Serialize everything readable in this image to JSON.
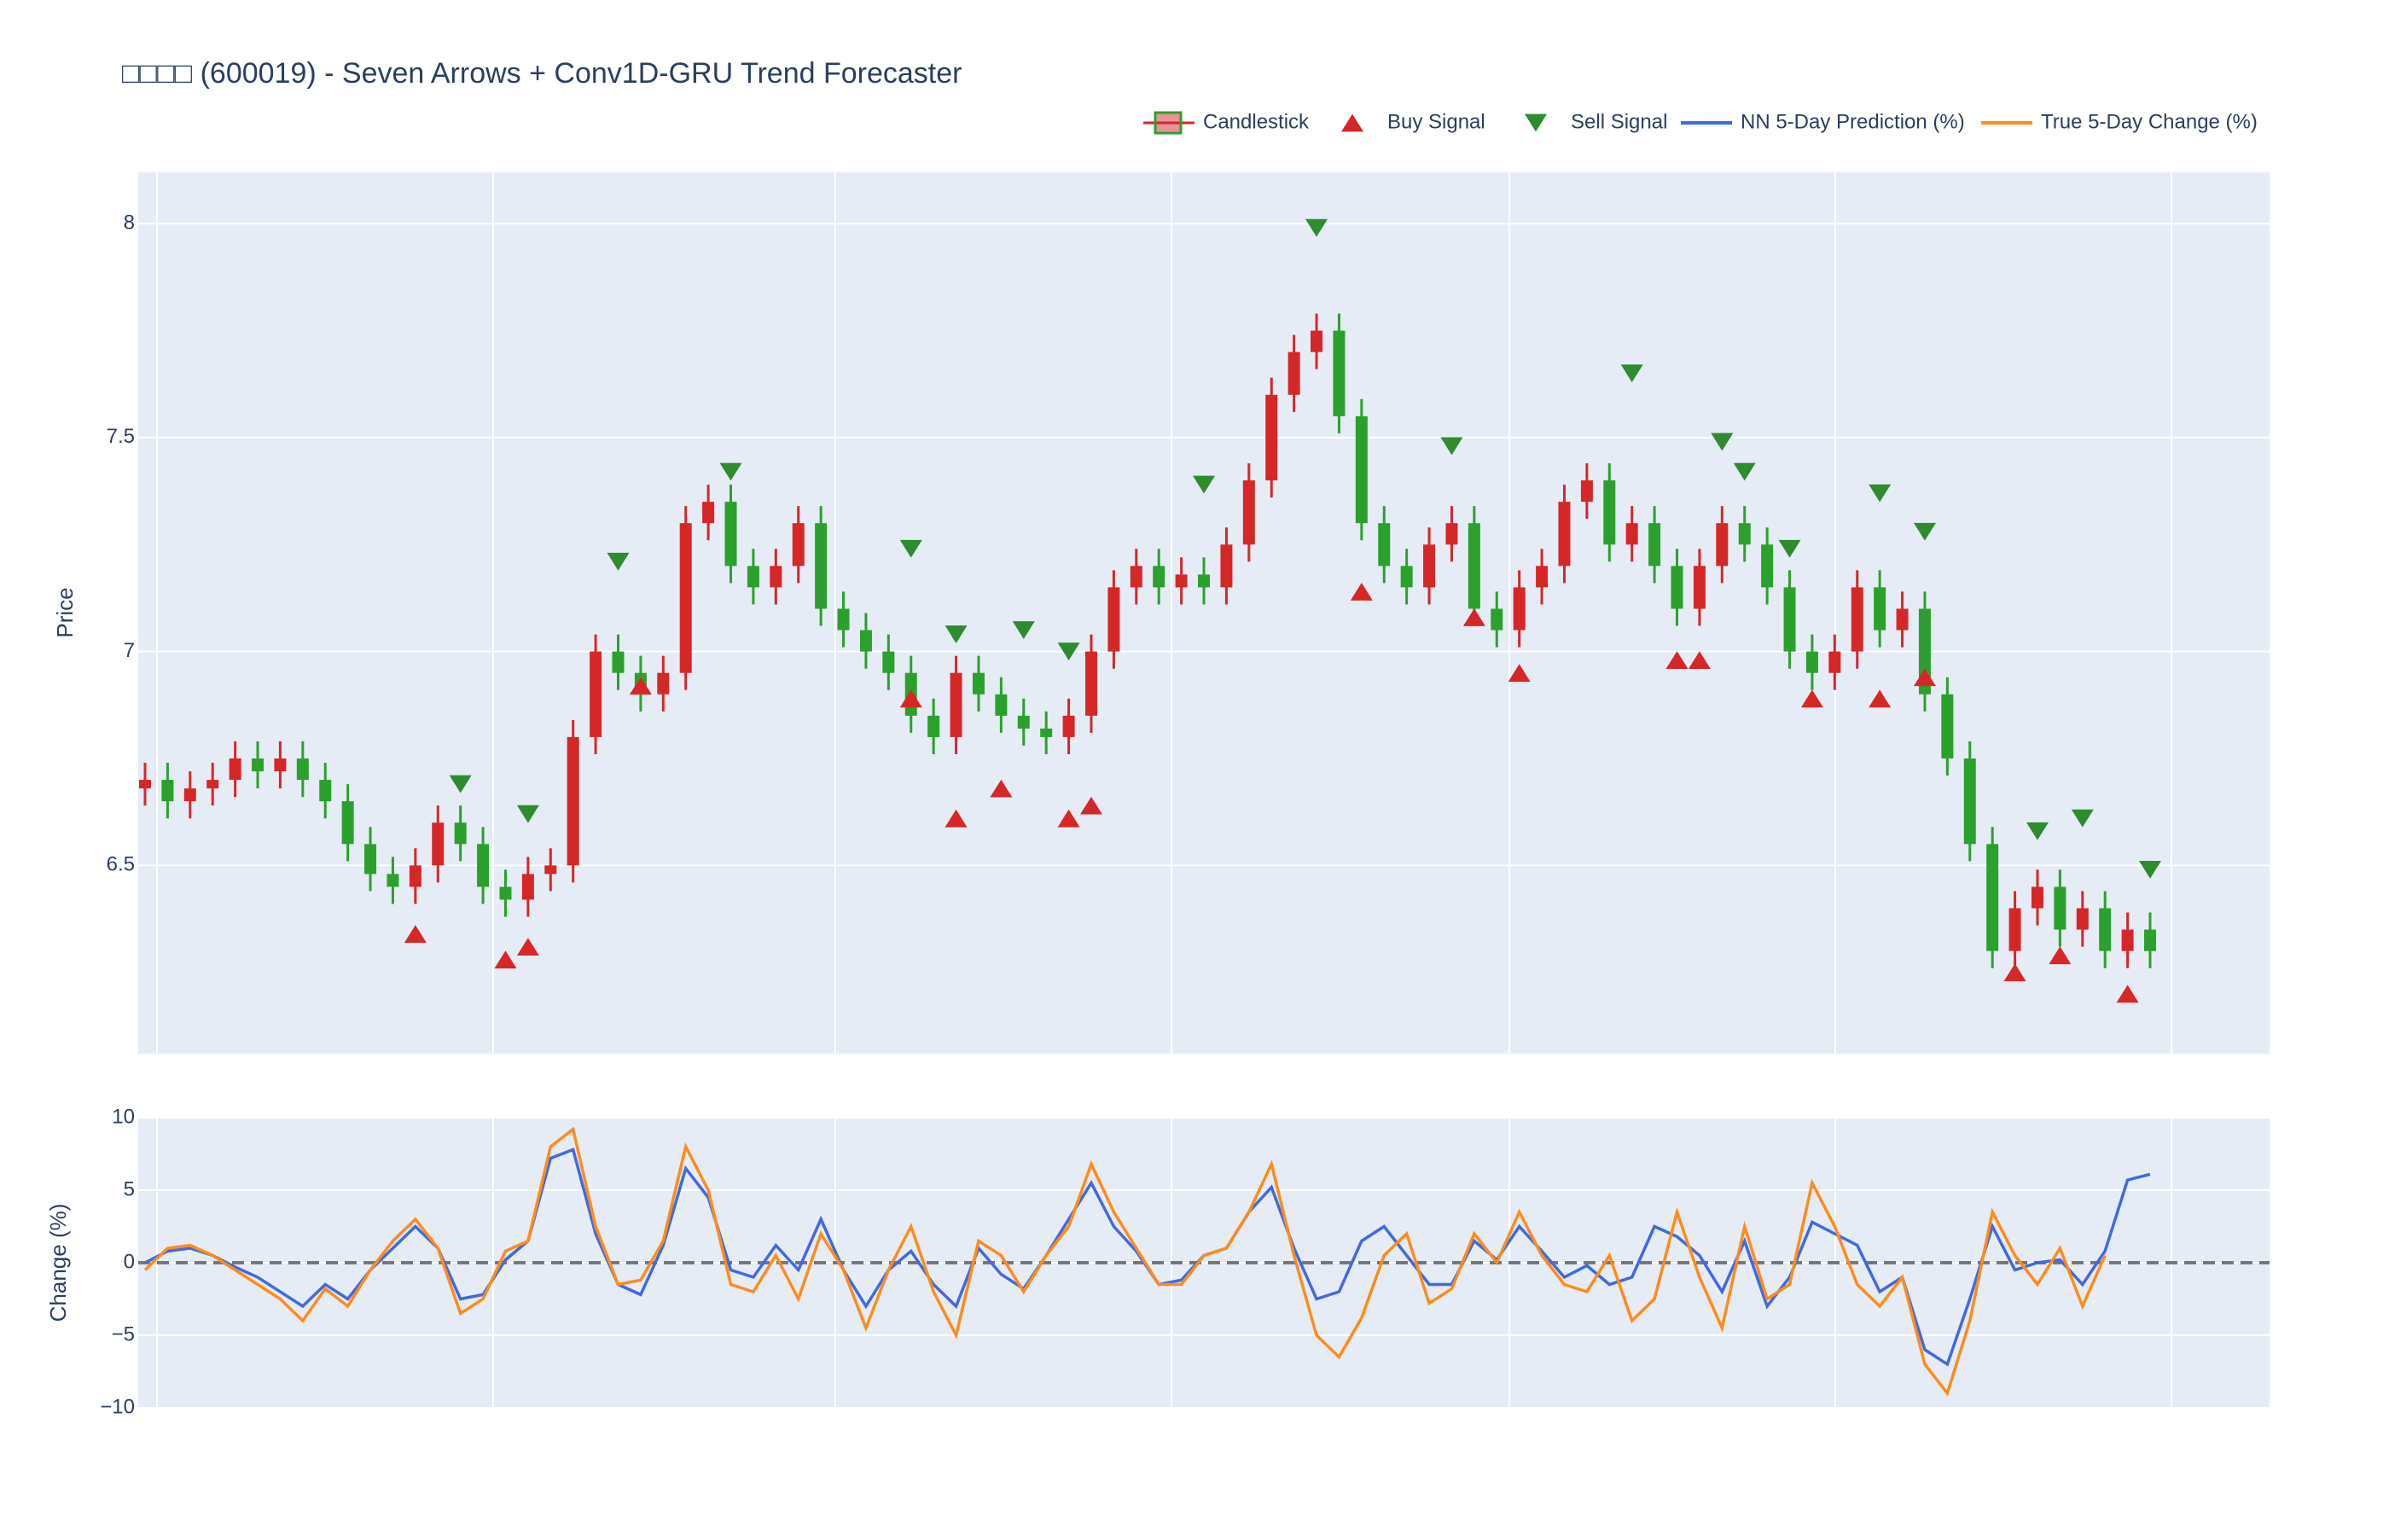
{
  "chart_data": [
    {
      "type": "candlestick",
      "title": "□□□□ (600019) - Seven Arrows + Conv1D-GRU Trend Forecaster",
      "y_label": "Price",
      "ylim": [
        6.06,
        8.12
      ],
      "yticks": [
        6.5,
        7,
        7.5,
        8
      ],
      "grid": true,
      "series": [
        {
          "name": "Candlestick",
          "type": "candlestick",
          "increasing_color": "#d62728",
          "decreasing_color": "#2ca02c",
          "open": [
            6.68,
            6.7,
            6.65,
            6.68,
            6.7,
            6.75,
            6.72,
            6.75,
            6.7,
            6.65,
            6.55,
            6.48,
            6.45,
            6.5,
            6.6,
            6.55,
            6.45,
            6.42,
            6.48,
            6.5,
            6.8,
            7.0,
            6.95,
            6.9,
            6.95,
            7.3,
            7.35,
            7.2,
            7.15,
            7.2,
            7.3,
            7.1,
            7.05,
            7.0,
            6.95,
            6.85,
            6.8,
            6.95,
            6.9,
            6.85,
            6.82,
            6.8,
            6.85,
            7.0,
            7.15,
            7.2,
            7.15,
            7.18,
            7.15,
            7.25,
            7.4,
            7.6,
            7.7,
            7.75,
            7.55,
            7.3,
            7.2,
            7.15,
            7.25,
            7.3,
            7.1,
            7.05,
            7.15,
            7.2,
            7.35,
            7.4,
            7.25,
            7.3,
            7.2,
            7.1,
            7.2,
            7.3,
            7.25,
            7.15,
            7.0,
            6.95,
            7.0,
            7.15,
            7.05,
            7.1,
            6.9,
            6.75,
            6.55,
            6.3,
            6.4,
            6.45,
            6.35,
            6.4,
            6.3,
            6.35
          ],
          "high": [
            6.74,
            6.74,
            6.72,
            6.74,
            6.79,
            6.79,
            6.79,
            6.79,
            6.74,
            6.69,
            6.59,
            6.52,
            6.54,
            6.64,
            6.64,
            6.59,
            6.49,
            6.52,
            6.54,
            6.84,
            7.04,
            7.04,
            6.99,
            6.99,
            7.34,
            7.39,
            7.39,
            7.24,
            7.24,
            7.34,
            7.34,
            7.14,
            7.09,
            7.04,
            6.99,
            6.89,
            6.99,
            6.99,
            6.94,
            6.89,
            6.86,
            6.89,
            7.04,
            7.19,
            7.24,
            7.24,
            7.22,
            7.22,
            7.29,
            7.44,
            7.64,
            7.74,
            7.79,
            7.79,
            7.59,
            7.34,
            7.24,
            7.29,
            7.34,
            7.34,
            7.14,
            7.19,
            7.24,
            7.39,
            7.44,
            7.44,
            7.34,
            7.34,
            7.24,
            7.24,
            7.34,
            7.34,
            7.29,
            7.19,
            7.04,
            7.04,
            7.19,
            7.19,
            7.14,
            7.14,
            6.94,
            6.79,
            6.59,
            6.44,
            6.49,
            6.49,
            6.44,
            6.44,
            6.39,
            6.39
          ],
          "low": [
            6.64,
            6.61,
            6.61,
            6.64,
            6.66,
            6.68,
            6.68,
            6.66,
            6.61,
            6.51,
            6.44,
            6.41,
            6.41,
            6.46,
            6.51,
            6.41,
            6.38,
            6.38,
            6.44,
            6.46,
            6.76,
            6.91,
            6.86,
            6.86,
            6.91,
            7.26,
            7.16,
            7.11,
            7.11,
            7.16,
            7.06,
            7.01,
            6.96,
            6.91,
            6.81,
            6.76,
            6.76,
            6.86,
            6.81,
            6.78,
            6.76,
            6.76,
            6.81,
            6.96,
            7.11,
            7.11,
            7.11,
            7.11,
            7.11,
            7.21,
            7.36,
            7.56,
            7.66,
            7.51,
            7.26,
            7.16,
            7.11,
            7.11,
            7.21,
            7.06,
            7.01,
            7.01,
            7.11,
            7.16,
            7.31,
            7.21,
            7.21,
            7.16,
            7.06,
            7.06,
            7.16,
            7.21,
            7.11,
            6.96,
            6.91,
            6.91,
            6.96,
            7.01,
            7.01,
            6.86,
            6.71,
            6.51,
            6.26,
            6.26,
            6.36,
            6.31,
            6.31,
            6.26,
            6.26,
            6.26
          ],
          "close": [
            6.7,
            6.65,
            6.68,
            6.7,
            6.75,
            6.72,
            6.75,
            6.7,
            6.65,
            6.55,
            6.48,
            6.45,
            6.5,
            6.6,
            6.55,
            6.45,
            6.42,
            6.48,
            6.5,
            6.8,
            7.0,
            6.95,
            6.9,
            6.95,
            7.3,
            7.35,
            7.2,
            7.15,
            7.2,
            7.3,
            7.1,
            7.05,
            7.0,
            6.95,
            6.85,
            6.8,
            6.95,
            6.9,
            6.85,
            6.82,
            6.8,
            6.85,
            7.0,
            7.15,
            7.2,
            7.15,
            7.18,
            7.15,
            7.25,
            7.4,
            7.6,
            7.7,
            7.75,
            7.55,
            7.3,
            7.2,
            7.15,
            7.25,
            7.3,
            7.1,
            7.05,
            7.15,
            7.2,
            7.35,
            7.4,
            7.25,
            7.3,
            7.2,
            7.1,
            7.2,
            7.3,
            7.25,
            7.15,
            7.0,
            6.95,
            7.0,
            7.15,
            7.05,
            7.1,
            6.9,
            6.75,
            6.55,
            6.3,
            6.4,
            6.45,
            6.35,
            6.4,
            6.3,
            6.35,
            6.3
          ]
        },
        {
          "name": "Buy Signal",
          "type": "marker",
          "marker": "triangle-up",
          "color": "#d62728",
          "values": [
            null,
            null,
            null,
            null,
            null,
            null,
            null,
            null,
            null,
            null,
            null,
            null,
            6.34,
            null,
            null,
            null,
            6.28,
            6.31,
            null,
            null,
            null,
            null,
            6.92,
            null,
            null,
            null,
            null,
            null,
            null,
            null,
            null,
            null,
            null,
            null,
            6.89,
            null,
            6.61,
            null,
            6.68,
            null,
            null,
            6.61,
            6.64,
            null,
            null,
            null,
            null,
            null,
            null,
            null,
            null,
            null,
            null,
            null,
            7.14,
            null,
            null,
            null,
            null,
            7.08,
            null,
            6.95,
            null,
            null,
            null,
            null,
            null,
            null,
            6.98,
            6.98,
            null,
            null,
            null,
            null,
            6.89,
            null,
            null,
            6.89,
            null,
            6.94,
            null,
            null,
            null,
            6.25,
            null,
            6.29,
            null,
            null,
            6.2,
            null
          ]
        },
        {
          "name": "Sell Signal",
          "type": "marker",
          "marker": "triangle-down",
          "color": "#2e8b2e",
          "values": [
            null,
            null,
            null,
            null,
            null,
            null,
            null,
            null,
            null,
            null,
            null,
            null,
            null,
            null,
            6.69,
            null,
            null,
            6.62,
            null,
            null,
            null,
            7.21,
            null,
            null,
            null,
            null,
            7.42,
            null,
            null,
            null,
            null,
            null,
            null,
            null,
            7.24,
            null,
            7.04,
            null,
            null,
            7.05,
            null,
            7.0,
            null,
            null,
            null,
            null,
            null,
            7.39,
            null,
            null,
            null,
            null,
            7.99,
            null,
            null,
            null,
            null,
            null,
            7.48,
            null,
            null,
            null,
            null,
            null,
            null,
            null,
            7.65,
            null,
            null,
            null,
            7.49,
            7.42,
            null,
            7.24,
            null,
            null,
            null,
            7.37,
            null,
            7.28,
            null,
            null,
            null,
            null,
            6.58,
            null,
            6.61,
            null,
            null,
            6.49
          ]
        }
      ]
    },
    {
      "type": "line",
      "y_label": "Change (%)",
      "ylim": [
        -10,
        10
      ],
      "yticks": [
        {
          "value": -10,
          "label": "−10"
        },
        {
          "value": -5,
          "label": "−5"
        },
        0,
        5,
        10
      ],
      "grid": true,
      "zero_line": true,
      "series": [
        {
          "name": "NN 5-Day Prediction (%)",
          "color": "#4169e1",
          "values": [
            0,
            0.8,
            1.0,
            0.5,
            -0.3,
            -1.0,
            -2.0,
            -3.0,
            -1.5,
            -2.5,
            -0.5,
            1.0,
            2.5,
            1.0,
            -2.5,
            -2.2,
            0.2,
            1.5,
            7.2,
            7.8,
            2.0,
            -1.5,
            -2.2,
            1.2,
            6.5,
            4.5,
            -0.5,
            -1.0,
            1.2,
            -0.5,
            3.0,
            -0.5,
            -3.0,
            -0.5,
            0.8,
            -1.5,
            -3.0,
            1.0,
            -0.8,
            -1.8,
            0.5,
            3.0,
            5.5,
            2.5,
            0.8,
            -1.5,
            -1.2,
            0.5,
            1.0,
            3.5,
            5.2,
            1.0,
            -2.5,
            -2.0,
            1.5,
            2.5,
            0.5,
            -1.5,
            -1.5,
            1.5,
            0.2,
            2.5,
            0.8,
            -1.0,
            -0.2,
            -1.5,
            -1.0,
            2.5,
            1.8,
            0.5,
            -2.0,
            1.5,
            -3.0,
            -1.0,
            2.8,
            2.0,
            1.2,
            -2.0,
            -1.0,
            -6.0,
            -7.0,
            -2.5,
            2.5,
            -0.5,
            0.0,
            0.2,
            -1.5,
            0.8,
            5.7,
            6.1
          ]
        },
        {
          "name": "True 5-Day Change (%)",
          "color": "#ff8c1a",
          "values": [
            -0.5,
            1.0,
            1.2,
            0.5,
            -0.5,
            -1.5,
            -2.5,
            -4.0,
            -1.8,
            -3.0,
            -0.5,
            1.5,
            3.0,
            1.0,
            -3.5,
            -2.5,
            0.8,
            1.5,
            8.0,
            9.2,
            2.5,
            -1.5,
            -1.2,
            1.5,
            8.0,
            5.0,
            -1.5,
            -2.0,
            0.5,
            -2.5,
            2.0,
            -0.5,
            -4.5,
            -0.5,
            2.5,
            -2.0,
            -5.0,
            1.5,
            0.5,
            -2.0,
            0.5,
            2.5,
            6.8,
            3.5,
            1.0,
            -1.5,
            -1.5,
            0.5,
            1.0,
            3.5,
            6.8,
            0.5,
            -5.0,
            -6.5,
            -3.8,
            0.5,
            2.0,
            -2.8,
            -1.8,
            2.0,
            0.0,
            3.5,
            0.5,
            -1.5,
            -2.0,
            0.5,
            -4.0,
            -2.5,
            3.5,
            -1.0,
            -4.5,
            2.5,
            -2.5,
            -1.5,
            5.5,
            2.5,
            -1.5,
            -3.0,
            -1.0,
            -7.0,
            -9.0,
            -4.0,
            3.5,
            0.5,
            -1.5,
            1.0,
            -3.0,
            0.5,
            null,
            null
          ]
        }
      ]
    }
  ]
}
